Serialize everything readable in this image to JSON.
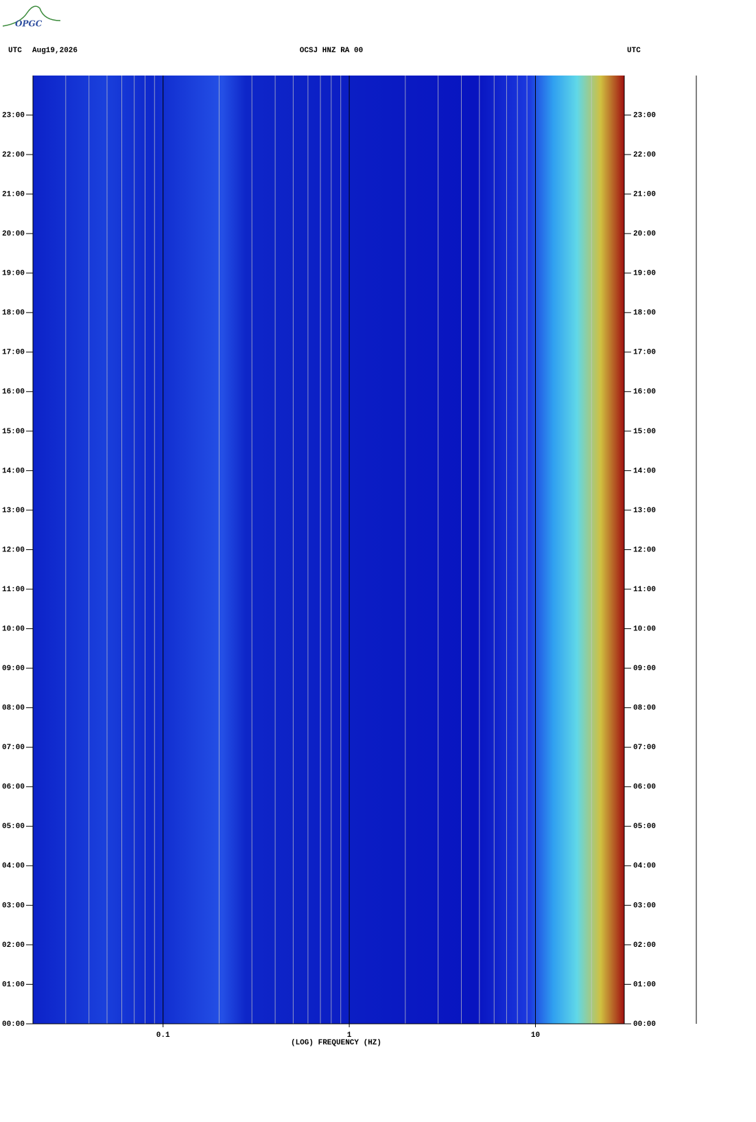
{
  "logo": "OPGC",
  "chart_data": {
    "type": "spectrogram",
    "header_left": "UTC",
    "date": "Aug19,2026",
    "title": "OCSJ HNZ RA 00",
    "header_right": "UTC",
    "x_label": "(LOG) FREQUENCY (HZ)",
    "x_scale": "log",
    "xlim": [
      0.02,
      30
    ],
    "xticks": [
      {
        "value": 0.1,
        "label": "0.1"
      },
      1,
      10
    ],
    "ylim": [
      0,
      24
    ],
    "yticks": [
      {
        "value": 0,
        "label": "00:00"
      },
      {
        "value": 1,
        "label": "01:00"
      },
      {
        "value": 2,
        "label": "02:00"
      },
      {
        "value": 3,
        "label": "03:00"
      },
      {
        "value": 4,
        "label": "04:00"
      },
      {
        "value": 5,
        "label": "05:00"
      },
      {
        "value": 6,
        "label": "06:00"
      },
      {
        "value": 7,
        "label": "07:00"
      },
      {
        "value": 8,
        "label": "08:00"
      },
      {
        "value": 9,
        "label": "09:00"
      },
      {
        "value": 10,
        "label": "10:00"
      },
      {
        "value": 11,
        "label": "11:00"
      },
      {
        "value": 12,
        "label": "12:00"
      },
      {
        "value": 13,
        "label": "13:00"
      },
      {
        "value": 14,
        "label": "14:00"
      },
      {
        "value": 15,
        "label": "15:00"
      },
      {
        "value": 16,
        "label": "16:00"
      },
      {
        "value": 17,
        "label": "17:00"
      },
      {
        "value": 18,
        "label": "18:00"
      },
      {
        "value": 19,
        "label": "19:00"
      },
      {
        "value": 20,
        "label": "20:00"
      },
      {
        "value": 21,
        "label": "21:00"
      },
      {
        "value": 22,
        "label": "22:00"
      },
      {
        "value": 23,
        "label": "23:00"
      }
    ],
    "grid": true
  }
}
